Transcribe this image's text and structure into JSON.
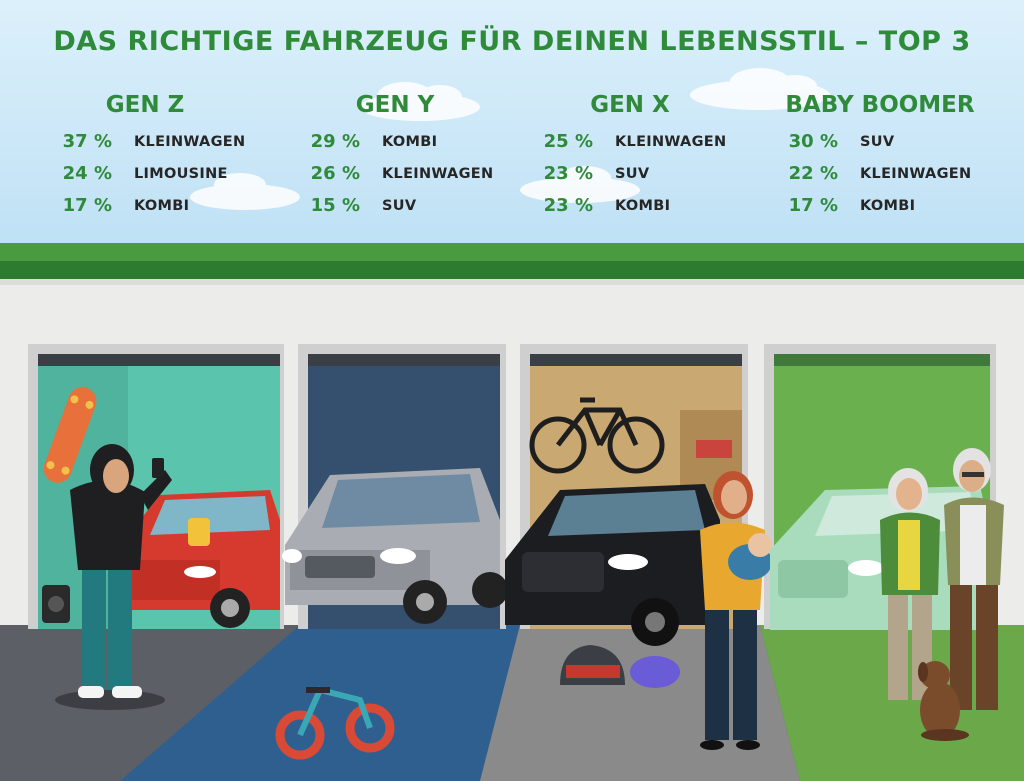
{
  "title": "DAS RICHTIGE FAHRZEUG FÜR DEINEN LEBENSSTIL – TOP 3",
  "generations": [
    {
      "name": "GEN Z",
      "rows": [
        {
          "pct": "37 %",
          "vehicle": "KLEINWAGEN"
        },
        {
          "pct": "24 %",
          "vehicle": "LIMOUSINE"
        },
        {
          "pct": "17 %",
          "vehicle": "KOMBI"
        }
      ]
    },
    {
      "name": "GEN Y",
      "rows": [
        {
          "pct": "29 %",
          "vehicle": "KOMBI"
        },
        {
          "pct": "26 %",
          "vehicle": "KLEINWAGEN"
        },
        {
          "pct": "15 %",
          "vehicle": "SUV"
        }
      ]
    },
    {
      "name": "GEN X",
      "rows": [
        {
          "pct": "25 %",
          "vehicle": "KLEINWAGEN"
        },
        {
          "pct": "23 %",
          "vehicle": "SUV"
        },
        {
          "pct": "23 %",
          "vehicle": "KOMBI"
        }
      ]
    },
    {
      "name": "BABY BOOMER",
      "rows": [
        {
          "pct": "30 %",
          "vehicle": "SUV"
        },
        {
          "pct": "22 %",
          "vehicle": "KLEINWAGEN"
        },
        {
          "pct": "17 %",
          "vehicle": "KOMBI"
        }
      ]
    }
  ],
  "colors": {
    "title_green": "#2f8a3a",
    "sky": "#cfe8f6",
    "garage_gen_z": "#5bc4ad",
    "garage_gen_y": "#34506e",
    "garage_gen_x": "#c9a872",
    "garage_boomer": "#6bb04f"
  }
}
